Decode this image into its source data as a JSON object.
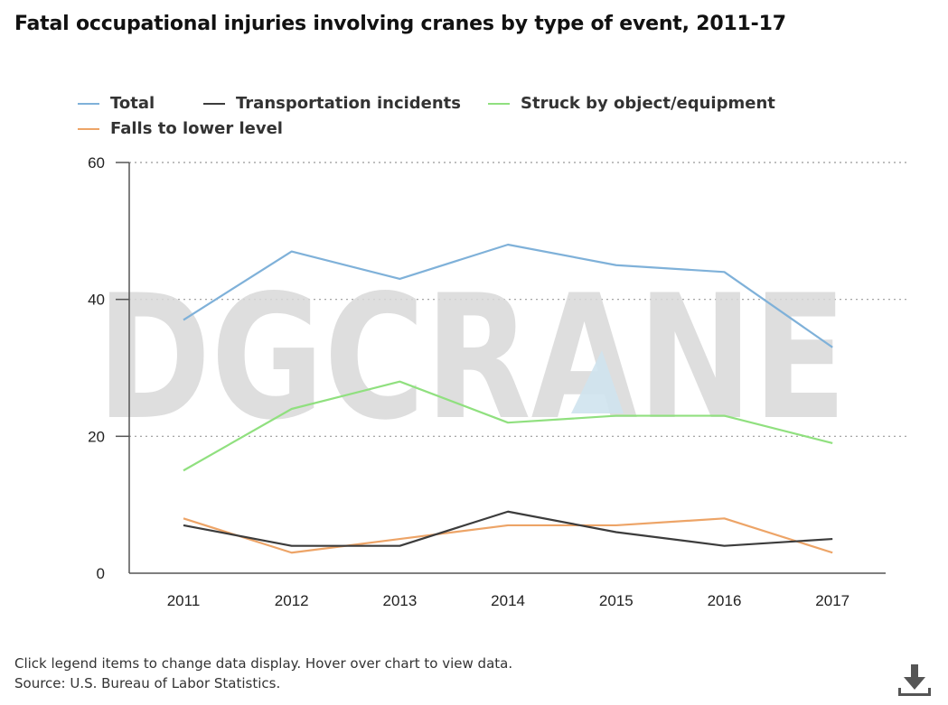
{
  "chart_data": {
    "type": "line",
    "title": "Fatal occupational injuries involving cranes by type of event, 2011-17",
    "xlabel": "",
    "ylabel": "",
    "categories": [
      "2011",
      "2012",
      "2013",
      "2014",
      "2015",
      "2016",
      "2017"
    ],
    "ylim": [
      0,
      60
    ],
    "yticks": [
      0,
      20,
      40,
      60
    ],
    "grid": "horizontal-dotted",
    "legend_position": "top-left",
    "series": [
      {
        "name": "Total",
        "color": "#7fb1d9",
        "values": [
          37,
          47,
          43,
          48,
          45,
          44,
          33
        ]
      },
      {
        "name": "Transportation incidents",
        "color": "#3c3c3c",
        "values": [
          7,
          4,
          4,
          9,
          6,
          4,
          5
        ]
      },
      {
        "name": "Struck by object/equipment",
        "color": "#90e07f",
        "values": [
          15,
          24,
          28,
          22,
          23,
          23,
          19
        ]
      },
      {
        "name": "Falls to lower level",
        "color": "#eda467",
        "values": [
          8,
          3,
          5,
          7,
          7,
          8,
          3
        ]
      }
    ]
  },
  "watermark": {
    "text": "DGCRANE"
  },
  "footer": {
    "note": "Click legend items to change data display. Hover over chart to view data.",
    "source": "Source: U.S. Bureau of Labor Statistics."
  },
  "icons": {
    "download": "download-icon"
  }
}
